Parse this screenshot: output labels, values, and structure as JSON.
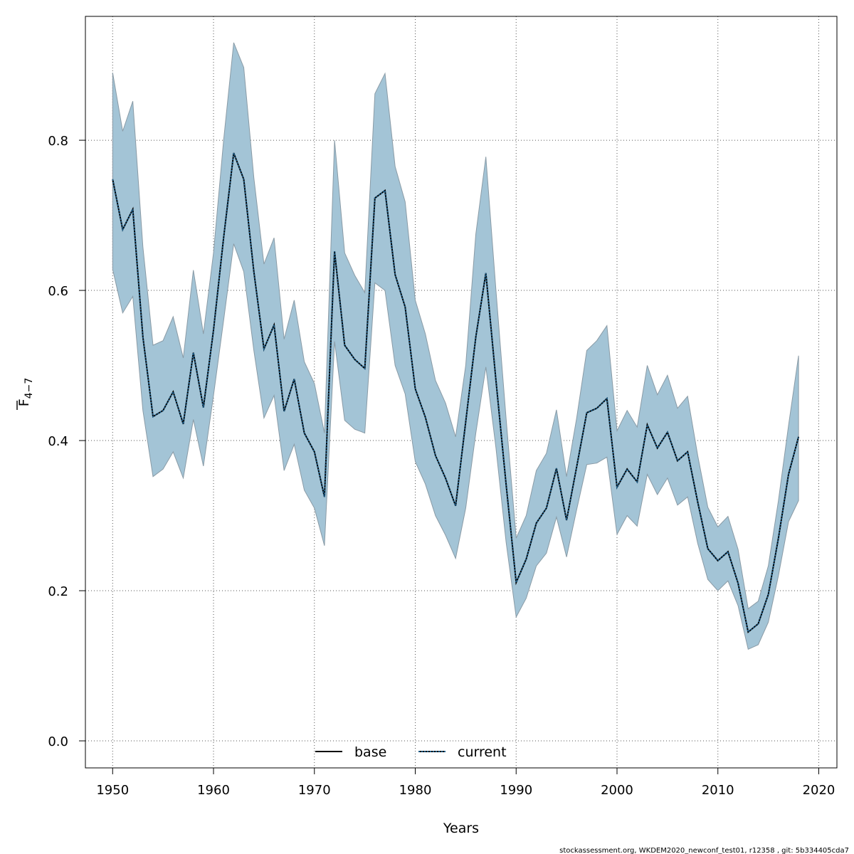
{
  "chart_data": {
    "type": "line",
    "xlabel": "Years",
    "ylabel_main": "F",
    "ylabel_sub": "4−7",
    "xlim": [
      1947.3,
      2021.8
    ],
    "ylim": [
      -0.036,
      0.965
    ],
    "x_ticks": [
      1950,
      1960,
      1970,
      1980,
      1990,
      2000,
      2010,
      2020
    ],
    "y_ticks": [
      0.0,
      0.2,
      0.4,
      0.6,
      0.8
    ],
    "y_tick_labels": [
      "0.0",
      "0.2",
      "0.4",
      "0.6",
      "0.8"
    ],
    "grid": true,
    "legend_position": "bottom",
    "colors": {
      "band_fill": "#a3c4d6",
      "band_edge": "#8a9ba6",
      "base_line": "#000000",
      "current_line": "#1f5f8b"
    },
    "x": [
      1950,
      1951,
      1952,
      1953,
      1954,
      1955,
      1956,
      1957,
      1958,
      1959,
      1960,
      1961,
      1962,
      1963,
      1964,
      1965,
      1966,
      1967,
      1968,
      1969,
      1970,
      1971,
      1972,
      1973,
      1974,
      1975,
      1976,
      1977,
      1978,
      1979,
      1980,
      1981,
      1982,
      1983,
      1984,
      1985,
      1986,
      1987,
      1988,
      1989,
      1990,
      1991,
      1992,
      1993,
      1994,
      1995,
      1996,
      1997,
      1998,
      1999,
      2000,
      2001,
      2002,
      2003,
      2004,
      2005,
      2006,
      2007,
      2008,
      2009,
      2010,
      2011,
      2012,
      2013,
      2014,
      2015,
      2016,
      2017,
      2018
    ],
    "series": [
      {
        "name": "base",
        "values": [
          0.748,
          0.681,
          0.708,
          0.538,
          0.432,
          0.44,
          0.465,
          0.422,
          0.517,
          0.444,
          0.547,
          0.67,
          0.783,
          0.748,
          0.625,
          0.522,
          0.554,
          0.439,
          0.482,
          0.41,
          0.385,
          0.325,
          0.652,
          0.527,
          0.508,
          0.496,
          0.723,
          0.733,
          0.621,
          0.578,
          0.469,
          0.431,
          0.38,
          0.35,
          0.313,
          0.425,
          0.538,
          0.623,
          0.48,
          0.342,
          0.211,
          0.242,
          0.29,
          0.31,
          0.363,
          0.294,
          0.365,
          0.437,
          0.443,
          0.456,
          0.338,
          0.362,
          0.345,
          0.421,
          0.39,
          0.411,
          0.373,
          0.385,
          0.318,
          0.256,
          0.24,
          0.252,
          0.21,
          0.145,
          0.156,
          0.195,
          0.27,
          0.355,
          0.405
        ]
      },
      {
        "name": "current",
        "values": [
          0.748,
          0.681,
          0.708,
          0.538,
          0.432,
          0.44,
          0.465,
          0.422,
          0.517,
          0.444,
          0.547,
          0.67,
          0.783,
          0.748,
          0.625,
          0.522,
          0.554,
          0.439,
          0.482,
          0.41,
          0.385,
          0.325,
          0.652,
          0.527,
          0.508,
          0.496,
          0.723,
          0.733,
          0.621,
          0.578,
          0.469,
          0.431,
          0.38,
          0.35,
          0.313,
          0.425,
          0.538,
          0.623,
          0.48,
          0.342,
          0.211,
          0.242,
          0.29,
          0.31,
          0.363,
          0.294,
          0.365,
          0.437,
          0.443,
          0.456,
          0.338,
          0.362,
          0.345,
          0.421,
          0.39,
          0.411,
          0.373,
          0.385,
          0.318,
          0.256,
          0.24,
          0.252,
          0.21,
          0.145,
          0.156,
          0.195,
          0.27,
          0.355,
          0.405
        ]
      }
    ],
    "ci_lower": [
      0.628,
      0.57,
      0.592,
      0.44,
      0.352,
      0.362,
      0.385,
      0.35,
      0.428,
      0.366,
      0.46,
      0.56,
      0.662,
      0.625,
      0.52,
      0.43,
      0.46,
      0.36,
      0.395,
      0.334,
      0.31,
      0.26,
      0.532,
      0.427,
      0.415,
      0.41,
      0.61,
      0.6,
      0.5,
      0.462,
      0.372,
      0.342,
      0.3,
      0.274,
      0.243,
      0.31,
      0.41,
      0.498,
      0.39,
      0.265,
      0.165,
      0.19,
      0.233,
      0.25,
      0.298,
      0.245,
      0.308,
      0.368,
      0.37,
      0.378,
      0.275,
      0.3,
      0.286,
      0.355,
      0.328,
      0.35,
      0.314,
      0.325,
      0.263,
      0.215,
      0.2,
      0.213,
      0.18,
      0.122,
      0.128,
      0.158,
      0.22,
      0.292,
      0.32
    ],
    "ci_upper": [
      0.89,
      0.812,
      0.852,
      0.658,
      0.527,
      0.533,
      0.565,
      0.51,
      0.627,
      0.542,
      0.65,
      0.8,
      0.93,
      0.897,
      0.75,
      0.635,
      0.67,
      0.535,
      0.587,
      0.505,
      0.476,
      0.41,
      0.8,
      0.65,
      0.62,
      0.597,
      0.862,
      0.889,
      0.765,
      0.718,
      0.587,
      0.542,
      0.48,
      0.45,
      0.405,
      0.5,
      0.675,
      0.778,
      0.6,
      0.43,
      0.27,
      0.3,
      0.36,
      0.383,
      0.441,
      0.352,
      0.43,
      0.52,
      0.533,
      0.553,
      0.413,
      0.44,
      0.418,
      0.5,
      0.461,
      0.487,
      0.443,
      0.459,
      0.38,
      0.311,
      0.285,
      0.299,
      0.255,
      0.176,
      0.186,
      0.233,
      0.32,
      0.42,
      0.513
    ]
  },
  "footer": "stockassessment.org, WKDEM2020_newconf_test01, r12358 , git: 5b334405cda7"
}
